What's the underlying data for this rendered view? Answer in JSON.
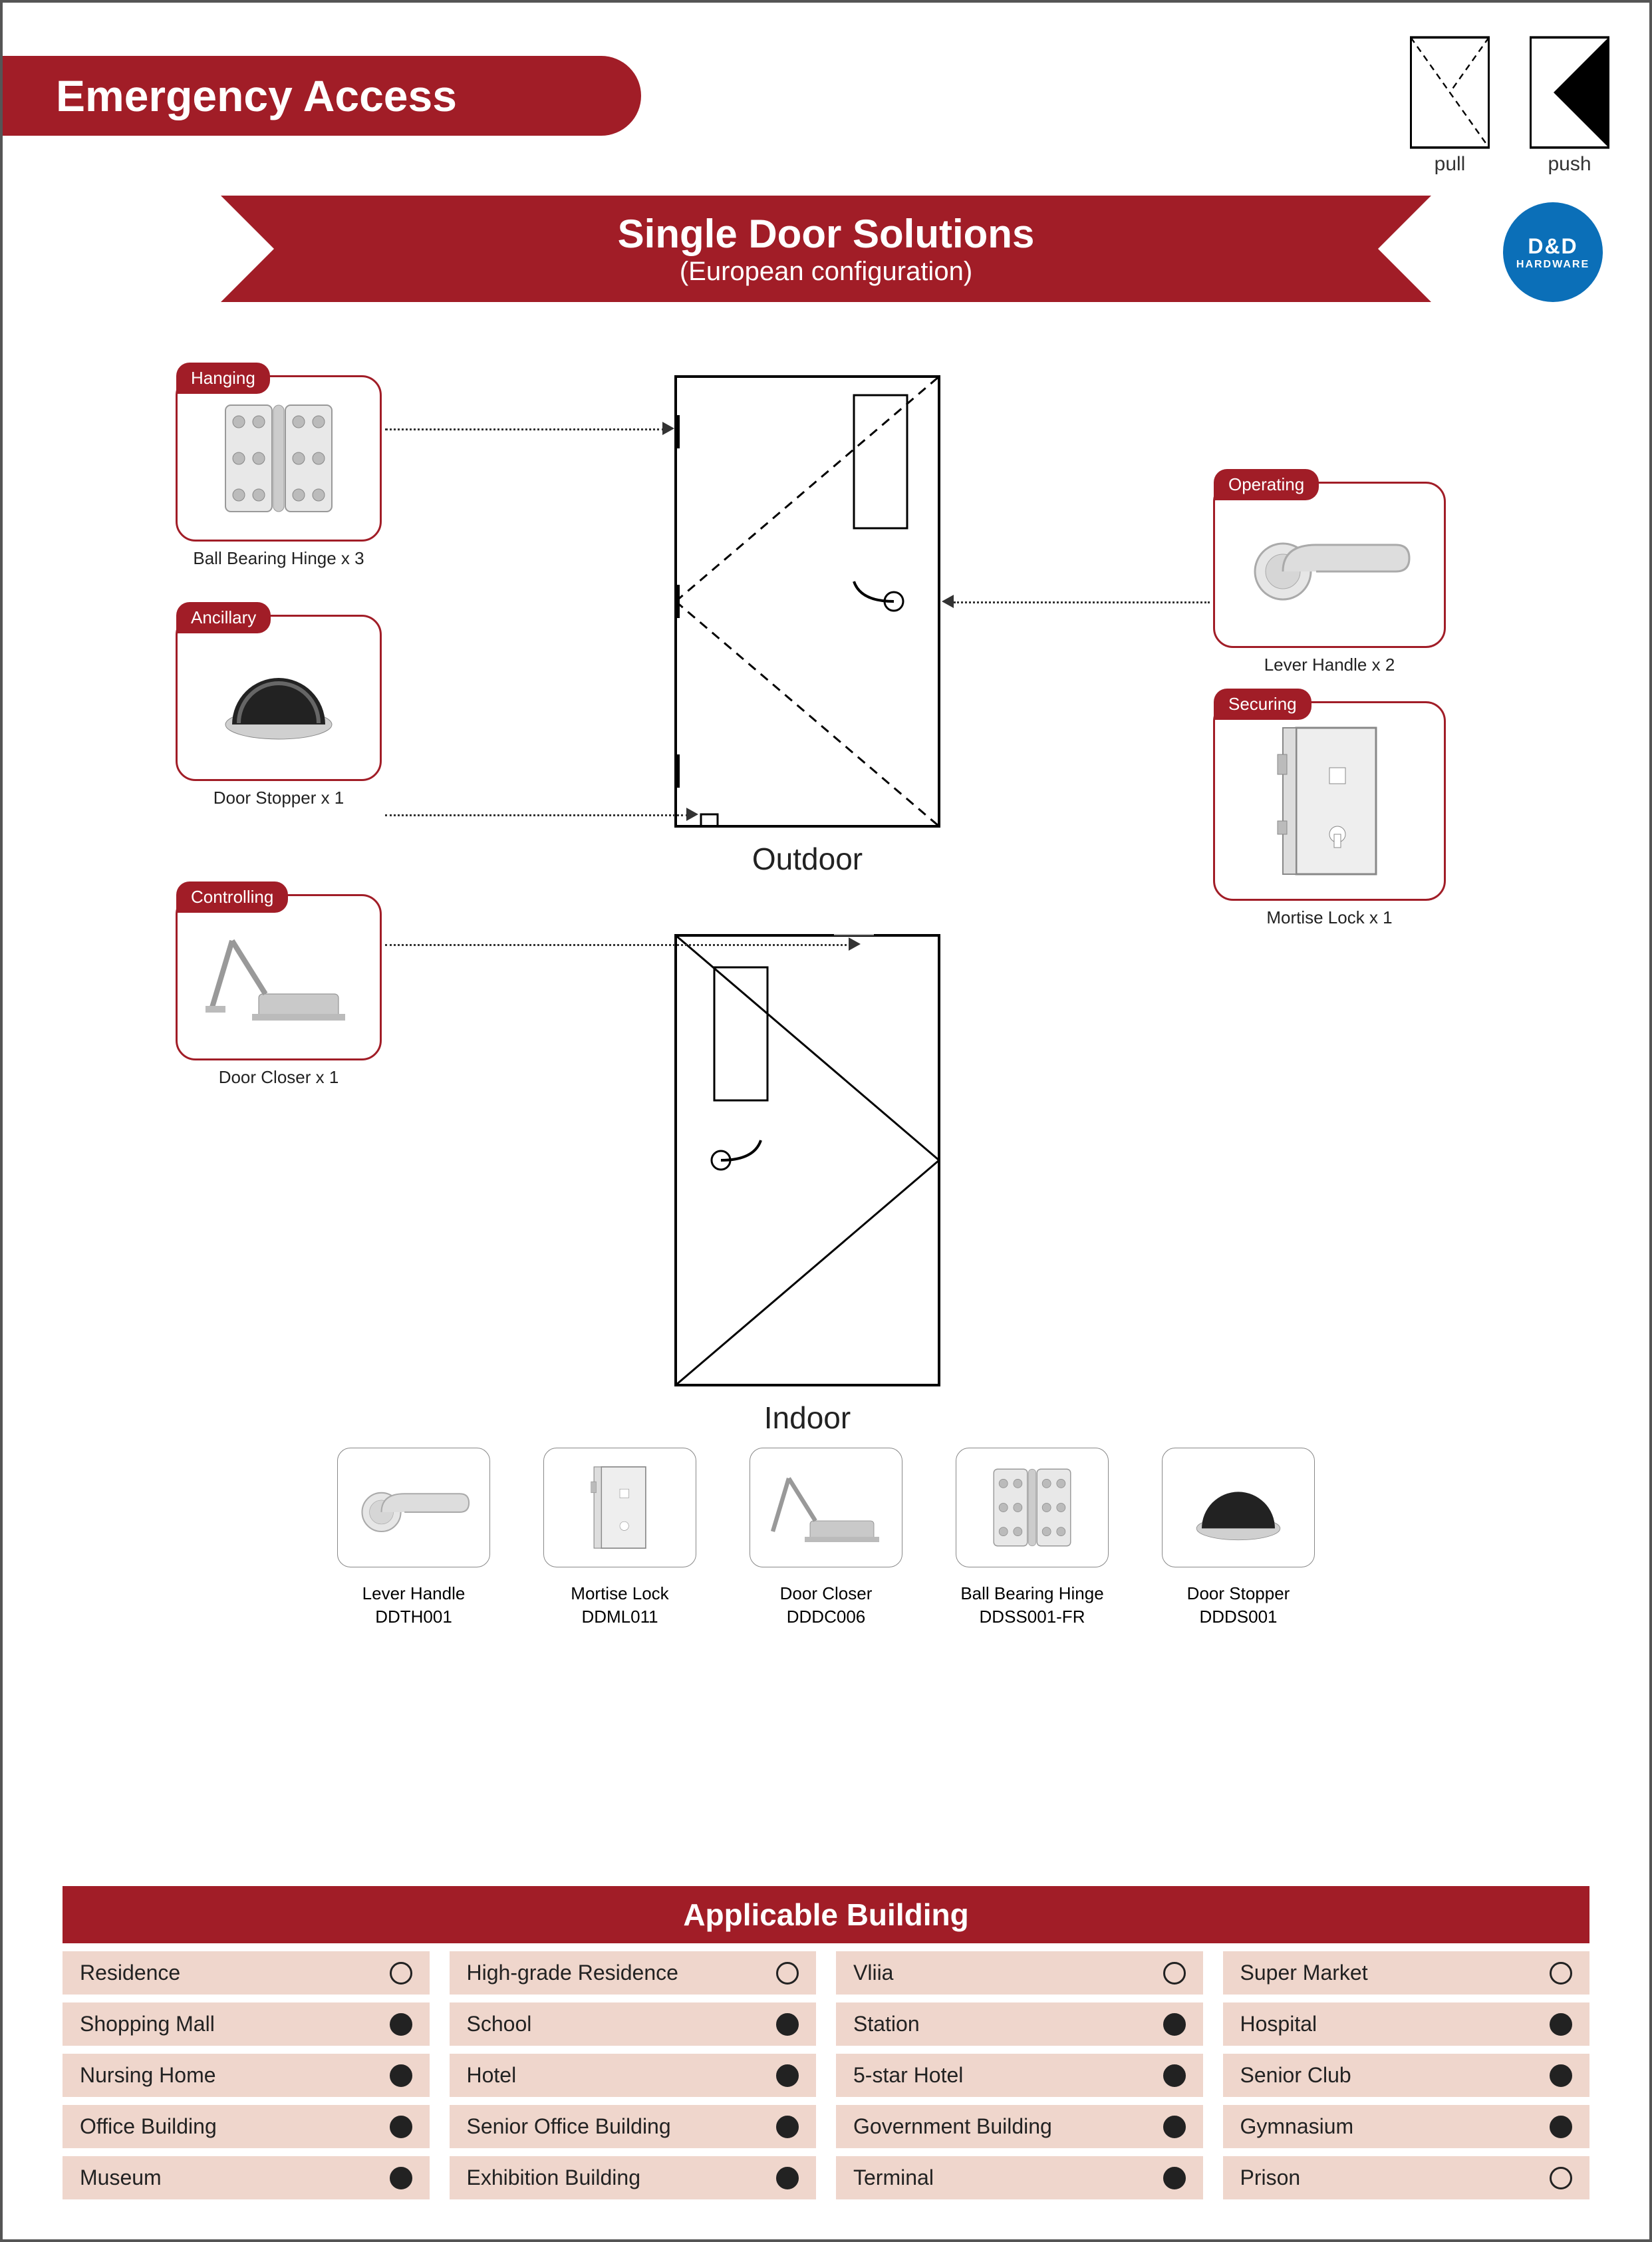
{
  "colors": {
    "brand": "#a11d27",
    "logo": "#0b6fb8",
    "cell_bg": "#efd6cc",
    "border": "#555"
  },
  "header": {
    "title": "Emergency Access"
  },
  "pullpush": {
    "pull": "pull",
    "push": "push"
  },
  "ribbon": {
    "title": "Single Door Solutions",
    "subtitle": "(European configuration)"
  },
  "logo": {
    "top": "D&D",
    "sub": "HARDWARE"
  },
  "components": {
    "hanging": {
      "tag": "Hanging",
      "caption": "Ball Bearing Hinge x 3"
    },
    "ancillary": {
      "tag": "Ancillary",
      "caption": "Door Stopper x 1"
    },
    "controlling": {
      "tag": "Controlling",
      "caption": "Door Closer x 1"
    },
    "operating": {
      "tag": "Operating",
      "caption": "Lever Handle x 2"
    },
    "securing": {
      "tag": "Securing",
      "caption": "Mortise Lock x 1"
    }
  },
  "doors": {
    "outdoor": "Outdoor",
    "indoor": "Indoor"
  },
  "thumbs": [
    {
      "name": "Lever Handle",
      "code": "DDTH001"
    },
    {
      "name": "Mortise Lock",
      "code": "DDML011"
    },
    {
      "name": "Door Closer",
      "code": "DDDC006"
    },
    {
      "name": "Ball Bearing Hinge",
      "code": "DDSS001-FR"
    },
    {
      "name": "Door Stopper",
      "code": "DDDS001"
    }
  ],
  "table": {
    "title": "Applicable Building",
    "rows": [
      [
        {
          "label": "Residence",
          "on": false
        },
        {
          "label": "High-grade Residence",
          "on": false
        },
        {
          "label": "Vliia",
          "on": false
        },
        {
          "label": "Super Market",
          "on": false
        }
      ],
      [
        {
          "label": "Shopping Mall",
          "on": true
        },
        {
          "label": "School",
          "on": true
        },
        {
          "label": "Station",
          "on": true
        },
        {
          "label": "Hospital",
          "on": true
        }
      ],
      [
        {
          "label": "Nursing Home",
          "on": true
        },
        {
          "label": "Hotel",
          "on": true
        },
        {
          "label": "5-star Hotel",
          "on": true
        },
        {
          "label": "Senior Club",
          "on": true
        }
      ],
      [
        {
          "label": "Office Building",
          "on": true
        },
        {
          "label": "Senior Office Building",
          "on": true
        },
        {
          "label": "Government Building",
          "on": true
        },
        {
          "label": "Gymnasium",
          "on": true
        }
      ],
      [
        {
          "label": "Museum",
          "on": true
        },
        {
          "label": "Exhibition Building",
          "on": true
        },
        {
          "label": "Terminal",
          "on": true
        },
        {
          "label": "Prison",
          "on": false
        }
      ]
    ]
  }
}
